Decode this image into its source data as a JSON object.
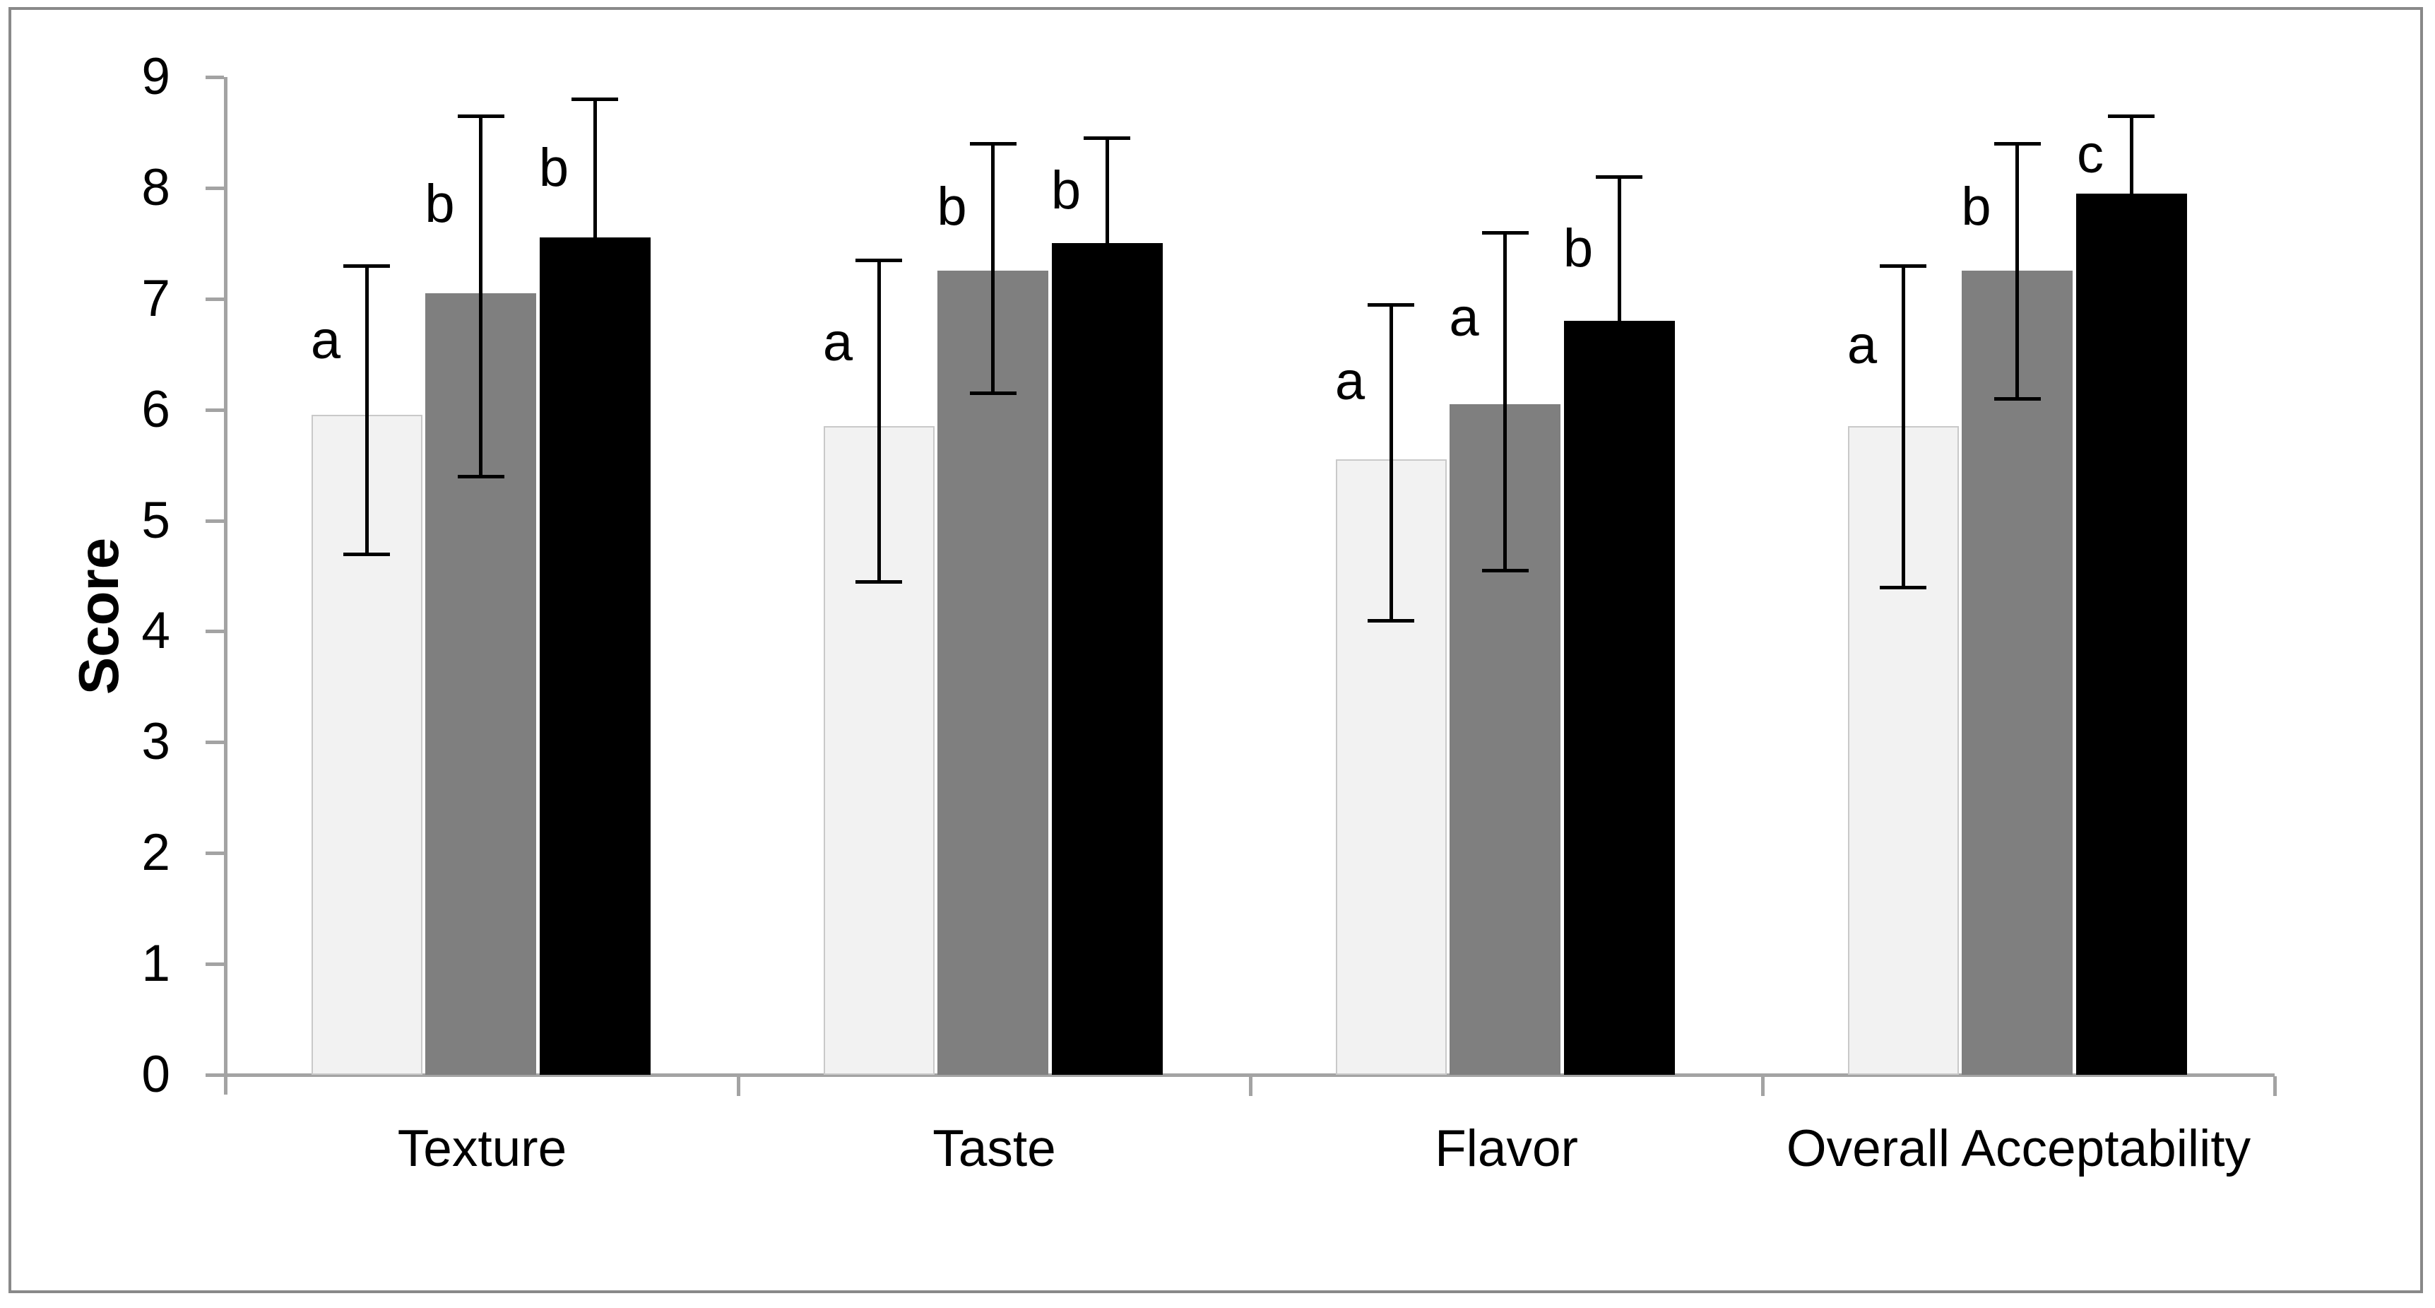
{
  "chart_data": {
    "type": "bar",
    "title": "",
    "xlabel": "",
    "ylabel": "Score",
    "ylim": [
      0,
      9
    ],
    "yticks": [
      0,
      1,
      2,
      3,
      4,
      5,
      6,
      7,
      8,
      9
    ],
    "grid": false,
    "legend": null,
    "categories": [
      "Texture",
      "Taste",
      "Flavor",
      "Overall Acceptability"
    ],
    "series": [
      {
        "name": "light-gray-sample",
        "color": "#f2f2f2",
        "border_color": "#c9c9c9",
        "values": [
          5.95,
          5.85,
          5.55,
          5.85
        ],
        "error_high": [
          7.3,
          7.35,
          6.95,
          7.3
        ],
        "error_low": [
          4.7,
          4.45,
          4.1,
          4.4
        ],
        "letters": [
          "a",
          "a",
          "a",
          "a"
        ]
      },
      {
        "name": "medium-gray-sample",
        "color": "#7f7f7f",
        "border_color": null,
        "values": [
          7.05,
          7.25,
          6.05,
          7.25
        ],
        "error_high": [
          8.65,
          8.4,
          7.6,
          8.4
        ],
        "error_low": [
          5.4,
          6.15,
          4.55,
          6.1
        ],
        "letters": [
          "b",
          "b",
          "a",
          "b"
        ]
      },
      {
        "name": "black-sample",
        "color": "#000000",
        "border_color": null,
        "values": [
          7.55,
          7.5,
          6.8,
          7.95
        ],
        "error_high": [
          8.8,
          8.45,
          8.1,
          8.65
        ],
        "error_low": [
          null,
          null,
          null,
          null
        ],
        "letters": [
          "b",
          "b",
          "b",
          "c"
        ]
      }
    ],
    "error_bar_color": "#000000",
    "axis_color": "#a3a3a3"
  }
}
